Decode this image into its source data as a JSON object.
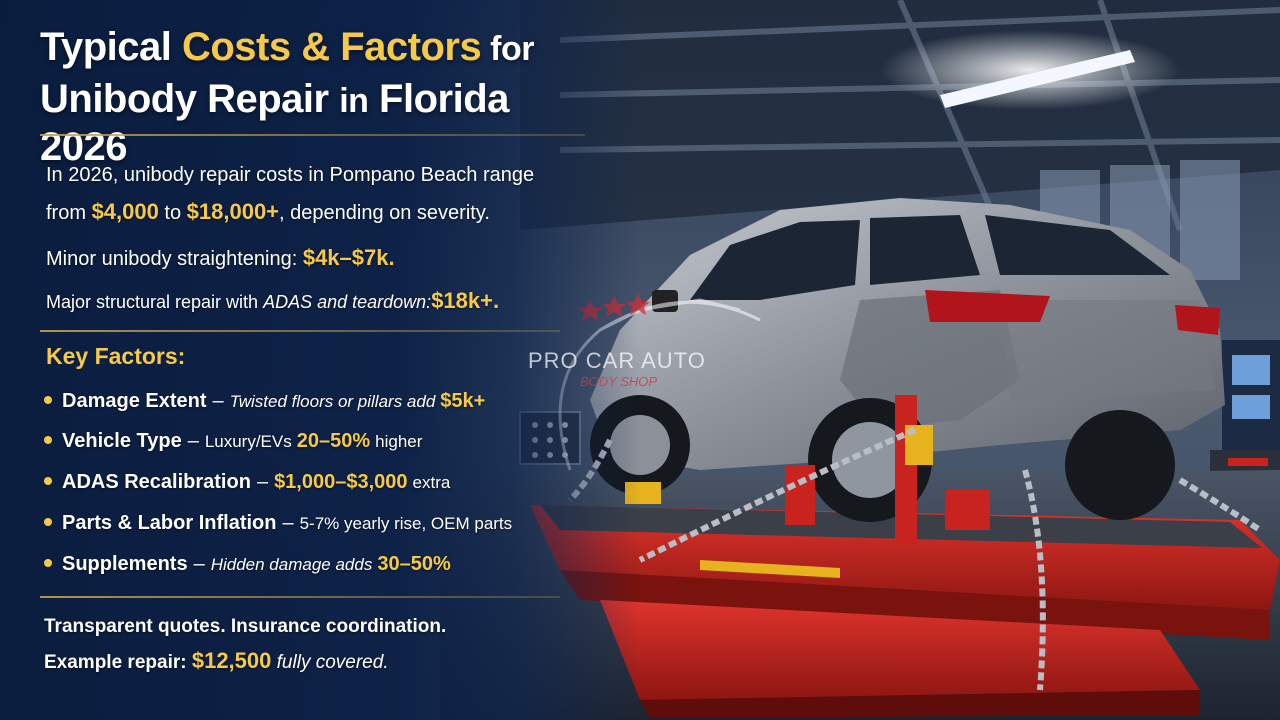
{
  "title": {
    "line1_a": "Typical ",
    "line1_b": "Costs & Factors",
    "line1_c": " for",
    "line2_a": "Unibody Repair ",
    "line2_b": "in",
    "line2_c": " Florida 2026"
  },
  "intro": {
    "line1": "In 2026, unibody repair costs in Pompano Beach range",
    "line2_a": "from ",
    "line2_amt1": "$4,000",
    "line2_b": " to ",
    "line2_amt2": "$18,000+",
    "line2_c": ", depending on severity.",
    "minor_label": "Minor unibody straightening: ",
    "minor_amt": "$4k–$7k.",
    "major_label_a": "Major structural repair with ",
    "major_label_b": "ADAS and teardown:",
    "major_amt": "$18k+."
  },
  "key_factors": {
    "heading": "Key Factors:",
    "items": [
      {
        "name": "Damage Extent",
        "desc": "Twisted floors or pillars add",
        "amt": "$5k+",
        "suffix": ""
      },
      {
        "name": "Vehicle Type",
        "desc": "Luxury/EVs",
        "amt": "20–50%",
        "suffix": "higher"
      },
      {
        "name": "ADAS Recalibration",
        "desc": "",
        "amt": "$1,000–$3,000",
        "suffix": "extra"
      },
      {
        "name": "Parts & Labor Inflation",
        "desc": "5-7% yearly rise, OEM parts",
        "amt": "",
        "suffix": ""
      },
      {
        "name": "Supplements",
        "desc": "Hidden damage adds",
        "amt": "30–50%",
        "suffix": ""
      }
    ],
    "dash": "–"
  },
  "footer": {
    "line1": "Transparent quotes. Insurance coordination.",
    "line2_a": "Example repair: ",
    "line2_amt": "$12,500",
    "line2_b": " fully covered."
  },
  "watermark": {
    "main": "PRO CAR AUTO",
    "sub": "BODY SHOP"
  },
  "colors": {
    "accent_gold": "#f7c948",
    "panel_navy": "#0c2046",
    "frame_red": "#c8231e"
  }
}
